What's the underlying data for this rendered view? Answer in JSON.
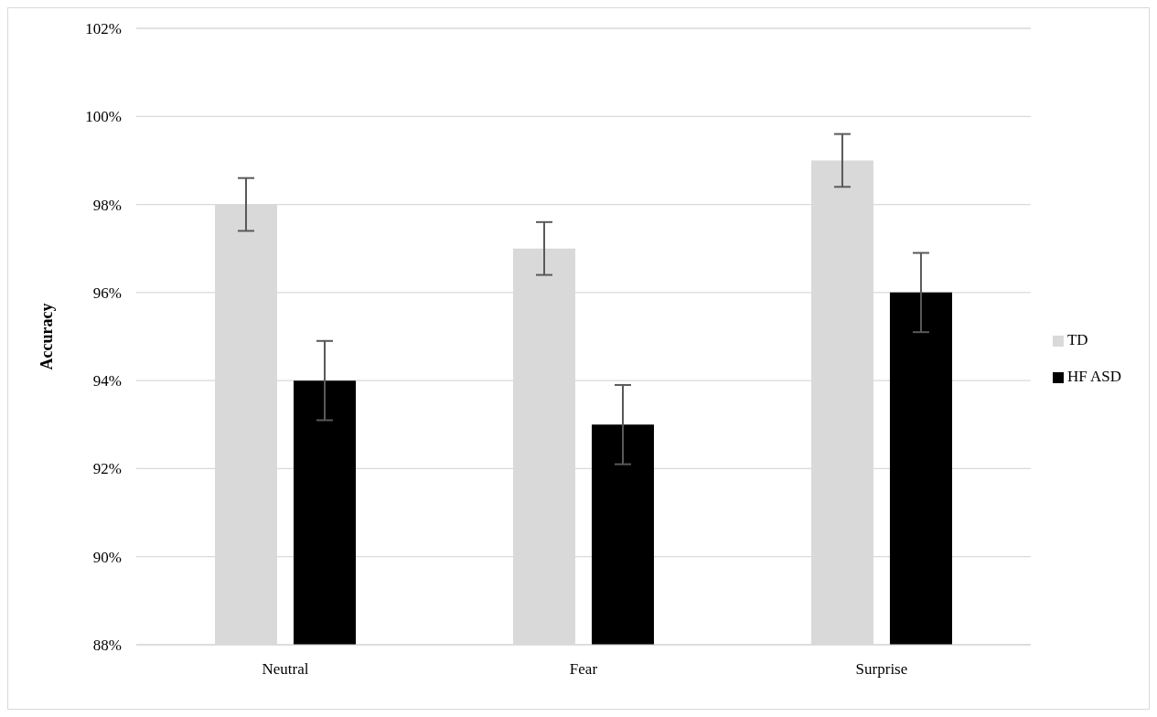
{
  "chart_data": {
    "type": "bar",
    "ylabel": "Accuracy",
    "categories": [
      "Neutral",
      "Fear",
      "Surprise"
    ],
    "series": [
      {
        "name": "TD",
        "color": "#d9d9d9",
        "values": [
          98,
          97,
          99
        ],
        "errors": [
          0.6,
          0.6,
          0.6
        ]
      },
      {
        "name": "HF ASD",
        "color": "#000000",
        "values": [
          94,
          93,
          96
        ],
        "errors": [
          0.9,
          0.9,
          0.9
        ]
      }
    ],
    "ylim": [
      88,
      102
    ],
    "yticks": [
      {
        "value": 88,
        "label": "88%"
      },
      {
        "value": 90,
        "label": "90%"
      },
      {
        "value": 92,
        "label": "92%"
      },
      {
        "value": 94,
        "label": "94%"
      },
      {
        "value": 96,
        "label": "96%"
      },
      {
        "value": 98,
        "label": "98%"
      },
      {
        "value": 100,
        "label": "100%"
      },
      {
        "value": 102,
        "label": "102%"
      }
    ],
    "grid": "y",
    "legend": "right"
  }
}
